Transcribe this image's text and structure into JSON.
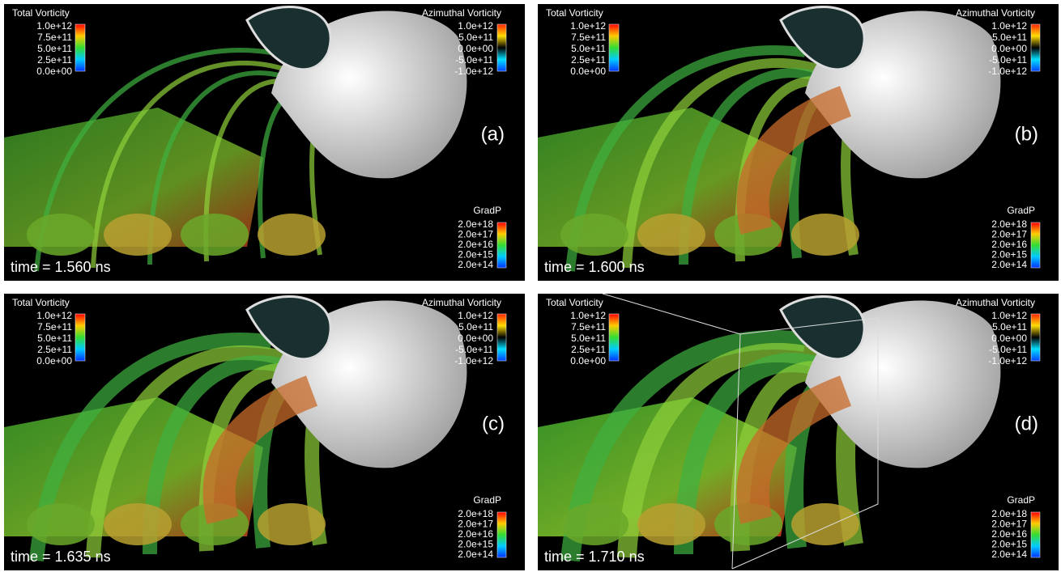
{
  "panels": [
    {
      "label": "(a)",
      "time": "time = 1.560 ns",
      "total_vorticity": {
        "title": "Total Vorticity",
        "ticks": [
          "1.0e+12",
          "7.5e+11",
          "5.0e+11",
          "2.5e+11",
          "0.0e+00"
        ]
      },
      "azimuthal_vorticity": {
        "title": "Azimuthal Vorticity",
        "ticks": [
          "1.0e+12",
          "5.0e+11",
          "0.0e+00",
          "-5.0e+11",
          "-1.0e+12"
        ]
      },
      "gradp": {
        "title": "GradP",
        "ticks": [
          "2.0e+18",
          "2.0e+17",
          "2.0e+16",
          "2.0e+15",
          "2.0e+14"
        ]
      }
    },
    {
      "label": "(b)",
      "time": "time = 1.600 ns",
      "total_vorticity": {
        "title": "Total Vorticity",
        "ticks": [
          "1.0e+12",
          "7.5e+11",
          "5.0e+11",
          "2.5e+11",
          "0.0e+00"
        ]
      },
      "azimuthal_vorticity": {
        "title": "Azimuthal Vorticity",
        "ticks": [
          "1.0e+12",
          "5.0e+11",
          "0.0e+00",
          "-5.0e+11",
          "-1.0e+12"
        ]
      },
      "gradp": {
        "title": "GradP",
        "ticks": [
          "2.0e+18",
          "2.0e+17",
          "2.0e+16",
          "2.0e+15",
          "2.0e+14"
        ]
      }
    },
    {
      "label": "(c)",
      "time": "time = 1.635 ns",
      "total_vorticity": {
        "title": "Total Vorticity",
        "ticks": [
          "1.0e+12",
          "7.5e+11",
          "5.0e+11",
          "2.5e+11",
          "0.0e+00"
        ]
      },
      "azimuthal_vorticity": {
        "title": "Azimuthal Vorticity",
        "ticks": [
          "1.0e+12",
          "5.0e+11",
          "0.0e+00",
          "-5.0e+11",
          "-1.0e+12"
        ]
      },
      "gradp": {
        "title": "GradP",
        "ticks": [
          "2.0e+18",
          "2.0e+17",
          "2.0e+16",
          "2.0e+15",
          "2.0e+14"
        ]
      }
    },
    {
      "label": "(d)",
      "time": "time = 1.710 ns",
      "total_vorticity": {
        "title": "Total Vorticity",
        "ticks": [
          "1.0e+12",
          "7.5e+11",
          "5.0e+11",
          "2.5e+11",
          "0.0e+00"
        ]
      },
      "azimuthal_vorticity": {
        "title": "Azimuthal Vorticity",
        "ticks": [
          "1.0e+12",
          "5.0e+11",
          "0.0e+00",
          "-5.0e+11",
          "-1.0e+12"
        ]
      },
      "gradp": {
        "title": "GradP",
        "ticks": [
          "2.0e+18",
          "2.0e+17",
          "2.0e+16",
          "2.0e+15",
          "2.0e+14"
        ]
      }
    }
  ]
}
